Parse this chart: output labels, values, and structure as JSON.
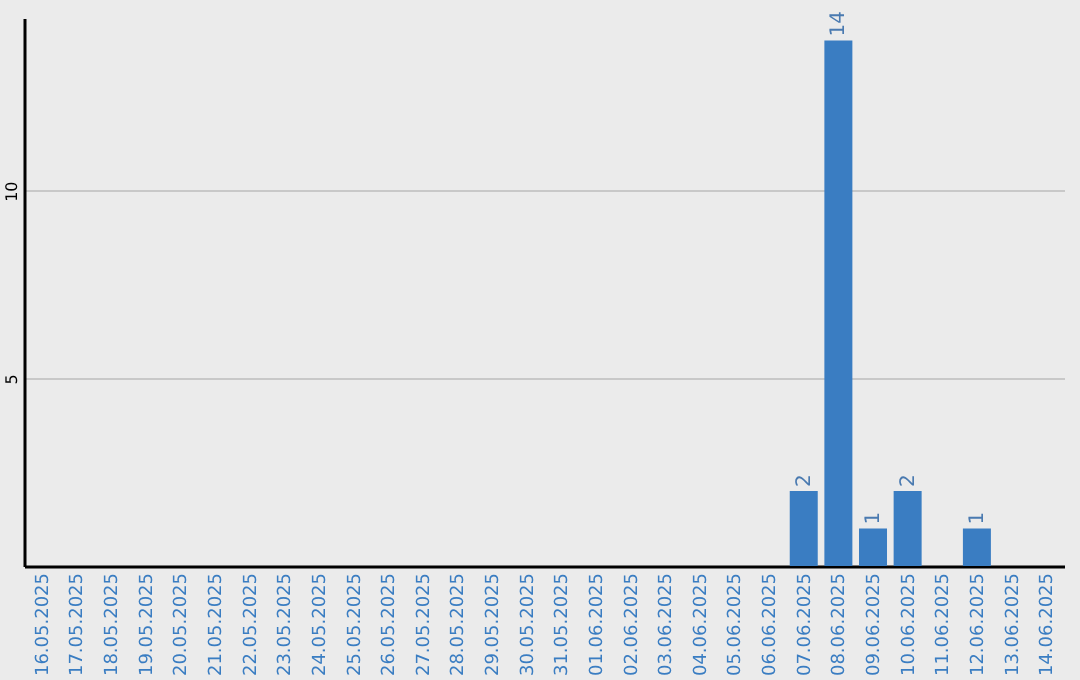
{
  "chart_data": {
    "type": "bar",
    "categories": [
      "16.05.2025",
      "17.05.2025",
      "18.05.2025",
      "19.05.2025",
      "20.05.2025",
      "21.05.2025",
      "22.05.2025",
      "23.05.2025",
      "24.05.2025",
      "25.05.2025",
      "26.05.2025",
      "27.05.2025",
      "28.05.2025",
      "29.05.2025",
      "30.05.2025",
      "31.05.2025",
      "01.06.2025",
      "02.06.2025",
      "03.06.2025",
      "04.06.2025",
      "05.06.2025",
      "06.06.2025",
      "07.06.2025",
      "08.06.2025",
      "09.06.2025",
      "10.06.2025",
      "11.06.2025",
      "12.06.2025",
      "13.06.2025",
      "14.06.2025"
    ],
    "values": [
      0,
      0,
      0,
      0,
      0,
      0,
      0,
      0,
      0,
      0,
      0,
      0,
      0,
      0,
      0,
      0,
      0,
      0,
      0,
      0,
      0,
      0,
      2,
      14,
      1,
      2,
      0,
      1,
      0,
      0
    ],
    "value_labels": [
      null,
      null,
      null,
      null,
      null,
      null,
      null,
      null,
      null,
      null,
      null,
      null,
      null,
      null,
      null,
      null,
      null,
      null,
      null,
      null,
      null,
      null,
      "2",
      "14",
      "1",
      "2",
      null,
      "1",
      null,
      null
    ],
    "color": "#3a7dc2",
    "ylim": [
      0,
      14.6
    ],
    "yticks": [
      5,
      10
    ],
    "grid": "y"
  }
}
